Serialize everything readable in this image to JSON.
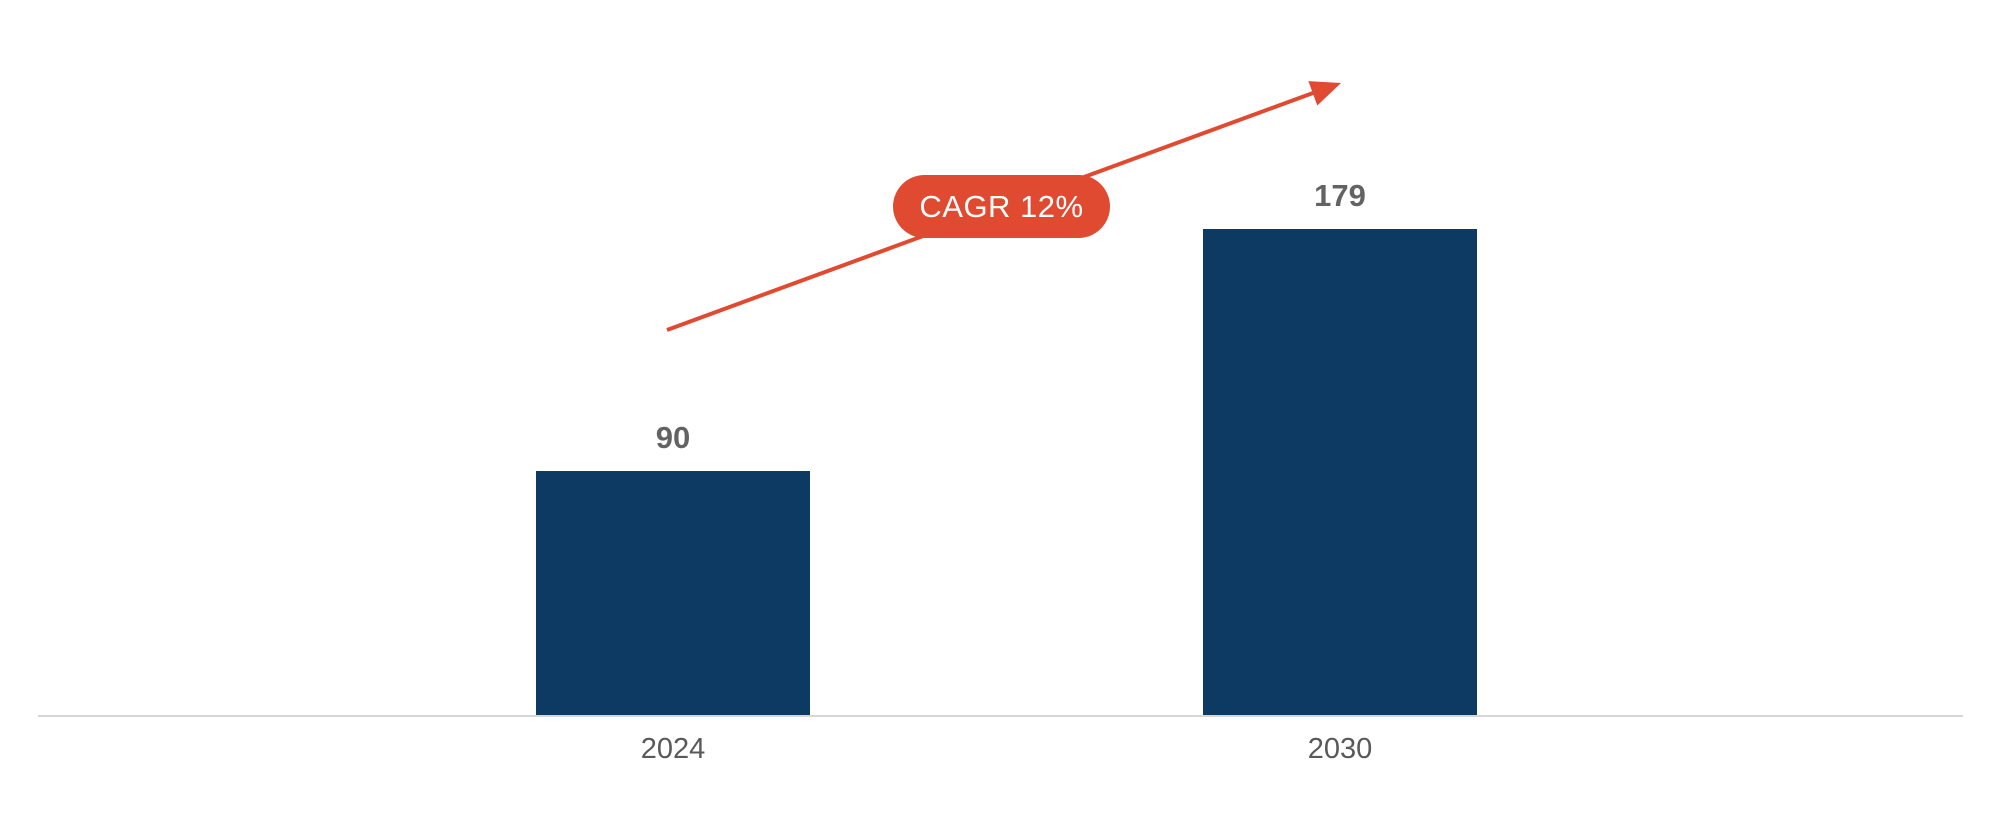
{
  "chart_data": {
    "type": "bar",
    "title": "",
    "xlabel": "",
    "ylabel": "",
    "categories": [
      "2024",
      "2030"
    ],
    "values": [
      90,
      179
    ],
    "ylim": [
      0,
      200
    ],
    "grid": false,
    "legend": false,
    "data_labels": true,
    "bar_color": "#0d3a62",
    "value_label_color": "#636363",
    "category_label_color": "#595959",
    "axis_line_color": "#d6d6d6",
    "background": "#ffffff",
    "annotation": {
      "label": "CAGR 12%",
      "badge_color": "#e04a30",
      "text_color": "#ffffff",
      "arrow_color": "#e04a30"
    }
  }
}
